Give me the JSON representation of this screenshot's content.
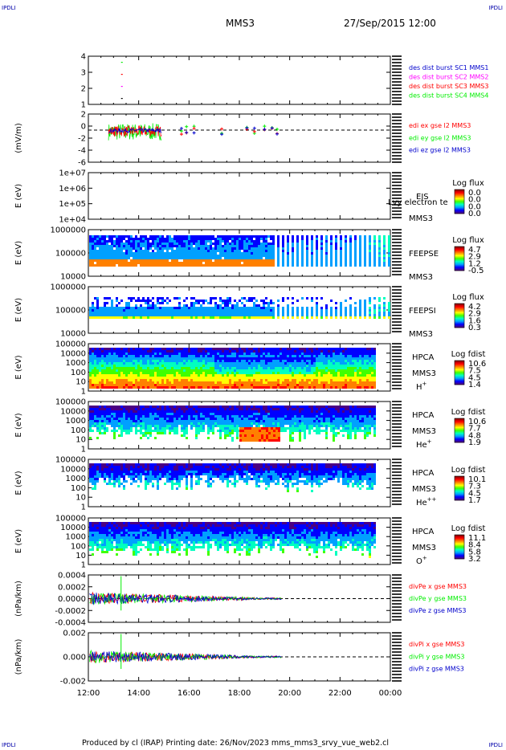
{
  "corners": {
    "tl": "IPDLI",
    "tr": "IPDLI",
    "bl": "IPDLI",
    "br": "IPDLI"
  },
  "header": {
    "mission": "MMS3",
    "datetime": "27/Sep/2015 12:00"
  },
  "footer": {
    "text": "Produced by cl (IRAP)   Printing date: 26/Nov/2023   mms_mms3_srvy_vue_web2.cl"
  },
  "colors": {
    "red": "#ff0000",
    "green": "#00ee00",
    "blue": "#0000cc",
    "magenta": "#ff00ff",
    "black": "#000000"
  },
  "colorbar_stops": [
    "#4b0082",
    "#0000ff",
    "#00a0ff",
    "#00ffc0",
    "#40ff00",
    "#ffff00",
    "#ff8000",
    "#ff0000",
    "#8b0000"
  ],
  "chart_data": [
    {
      "type": "scatter",
      "id": "burst",
      "ylabel": "",
      "ylim": [
        0.5,
        4.5
      ],
      "yticks": [
        "4",
        "3",
        "2",
        "1"
      ],
      "legend": [
        {
          "name": "des dist burst SC1 MMS1",
          "color": "#0000cc"
        },
        {
          "name": "des dist burst SC2 MMS2",
          "color": "#ff00ff"
        },
        {
          "name": "des dist burst SC3 MMS3",
          "color": "#ff0000"
        },
        {
          "name": "des dist burst SC4 MMS4",
          "color": "#00ee00"
        }
      ],
      "points": [
        {
          "x": 13.3,
          "y": 4,
          "series": "SC4"
        },
        {
          "x": 13.3,
          "y": 3,
          "series": "SC3"
        },
        {
          "x": 13.3,
          "y": 2,
          "series": "SC2"
        },
        {
          "x": 13.3,
          "y": 1,
          "series": "SC1"
        }
      ]
    },
    {
      "type": "line",
      "id": "edi",
      "ylabel": "(mV/m)",
      "ylim": [
        -6,
        3
      ],
      "yticks": [
        "2",
        "0",
        "-2",
        "-4",
        "-6"
      ],
      "legend": [
        {
          "name": "edi ex gse l2 MMS3",
          "color": "#ff0000"
        },
        {
          "name": "edi ey gse l2 MMS3",
          "color": "#00ee00"
        },
        {
          "name": "edi ez gse l2 MMS3",
          "color": "#0000cc"
        }
      ]
    },
    {
      "type": "heatmap",
      "id": "eis",
      "ylabel": "E (eV)",
      "yticks": [
        "1e+07",
        "1e+06",
        "1e+05",
        "1e+04"
      ],
      "labels": [
        "EIS",
        "MMS3"
      ],
      "overlay": "Lvy electron te",
      "colorbar": {
        "title": "Log flux",
        "ticks": [
          "0.0",
          "0.0",
          "0.0",
          "0.0"
        ]
      }
    },
    {
      "type": "heatmap",
      "id": "feepse",
      "ylabel": "E (eV)",
      "yticks": [
        "1000000",
        "100000",
        "10000"
      ],
      "labels": [
        "FEEPSE",
        "MMS3"
      ],
      "colorbar": {
        "title": "Log flux",
        "ticks": [
          "4.7",
          "2.9",
          "1.2",
          "-0.5"
        ]
      }
    },
    {
      "type": "heatmap",
      "id": "feepsi",
      "ylabel": "E (eV)",
      "yticks": [
        "1000000",
        "100000",
        "10000"
      ],
      "labels": [
        "FEEPSI",
        "MMS3"
      ],
      "colorbar": {
        "title": "Log flux",
        "ticks": [
          "4.2",
          "2.9",
          "1.6",
          "0.3"
        ]
      }
    },
    {
      "type": "heatmap",
      "id": "hpca_h",
      "ylabel": "E (eV)",
      "yticks": [
        "100000",
        "10000",
        "1000",
        "100",
        "10",
        "1"
      ],
      "labels": [
        "HPCA",
        "MMS3",
        "H+"
      ],
      "colorbar": {
        "title": "Log fdist",
        "ticks": [
          "10.6",
          "7.5",
          "4.5",
          "1.4"
        ]
      }
    },
    {
      "type": "heatmap",
      "id": "hpca_he",
      "ylabel": "E (eV)",
      "yticks": [
        "100000",
        "10000",
        "1000",
        "100",
        "10",
        "1"
      ],
      "labels": [
        "HPCA",
        "MMS3",
        "He+"
      ],
      "colorbar": {
        "title": "Log fdist",
        "ticks": [
          "10.6",
          "7.7",
          "4.8",
          "1.9"
        ]
      }
    },
    {
      "type": "heatmap",
      "id": "hpca_hepp",
      "ylabel": "E (eV)",
      "yticks": [
        "100000",
        "10000",
        "1000",
        "100",
        "10",
        "1"
      ],
      "labels": [
        "HPCA",
        "MMS3",
        "He++"
      ],
      "colorbar": {
        "title": "Log fdist",
        "ticks": [
          "10.1",
          "7.3",
          "4.5",
          "1.7"
        ]
      }
    },
    {
      "type": "heatmap",
      "id": "hpca_o",
      "ylabel": "E (eV)",
      "yticks": [
        "100000",
        "10000",
        "1000",
        "100",
        "10",
        "1"
      ],
      "labels": [
        "HPCA",
        "MMS3",
        "O+"
      ],
      "colorbar": {
        "title": "Log fdist",
        "ticks": [
          "11.1",
          "8.4",
          "5.8",
          "3.2"
        ]
      }
    },
    {
      "type": "line",
      "id": "divpe",
      "ylabel": "(nPa/km)",
      "ylim": [
        -0.0004,
        0.0004
      ],
      "yticks": [
        "0.0004",
        "0.0002",
        "0.0000",
        "-0.0002",
        "-0.0004"
      ],
      "legend": [
        {
          "name": "divPe x gse MMS3",
          "color": "#ff0000"
        },
        {
          "name": "divPe y gse MMS3",
          "color": "#00ee00"
        },
        {
          "name": "divPe z gse MMS3",
          "color": "#0000cc"
        }
      ]
    },
    {
      "type": "line",
      "id": "divpi",
      "ylabel": "(nPa/km)",
      "ylim": [
        -0.003,
        0.003
      ],
      "yticks": [
        "0.002",
        "0.000",
        "-0.002"
      ],
      "legend": [
        {
          "name": "divPi x gse MMS3",
          "color": "#ff0000"
        },
        {
          "name": "divPi y gse MMS3",
          "color": "#00ee00"
        },
        {
          "name": "divPi z gse MMS3",
          "color": "#0000cc"
        }
      ]
    }
  ],
  "xaxis": {
    "ticks": [
      "12:00",
      "14:00",
      "16:00",
      "18:00",
      "20:00",
      "22:00",
      "00:00"
    ],
    "range_hours": [
      12,
      24
    ]
  }
}
